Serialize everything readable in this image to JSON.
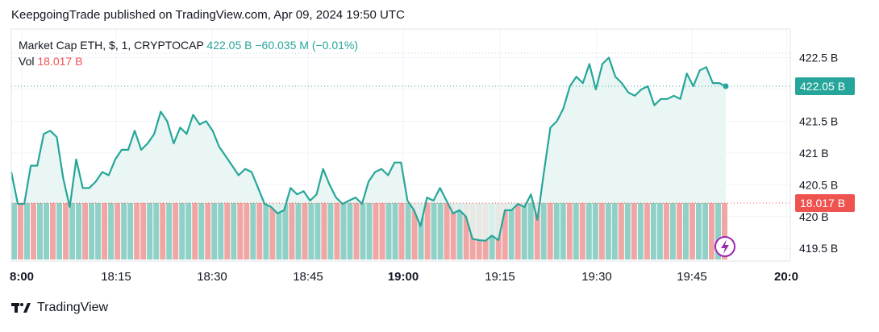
{
  "header": {
    "published_text": "KeepgoingTrade published on TradingView.com, Apr 09, 2024 19:50 UTC"
  },
  "legend": {
    "symbol": "Market Cap ETH, $, 1, CRYPTOCAP",
    "last_value": "422.05 B",
    "change": "−60.035 M (−0.01%)",
    "vol_label": "Vol",
    "vol_value": "18.017 B"
  },
  "badges": {
    "price": "422.05 B",
    "volume": "18.017 B"
  },
  "footer": {
    "brand": "TradingView"
  },
  "colors": {
    "line": "#26a69a",
    "area": "#e6f4f1",
    "vol_up": "#8fd1c6",
    "vol_down": "#f0a6a4",
    "price_badge": "#26a69a",
    "vol_badge": "#ef5350",
    "lightning": "#9c27b0"
  },
  "icons": {
    "lightning": "lightning-icon",
    "logo": "tradingview-logo-icon"
  },
  "chart_data": {
    "type": "area",
    "x_ticks": [
      "8:00",
      "18:15",
      "18:30",
      "18:45",
      "19:00",
      "19:15",
      "19:30",
      "19:45",
      "20:0"
    ],
    "y_ticks": [
      "422.5 B",
      "422 B",
      "421.5 B",
      "421 B",
      "420.5 B",
      "420 B",
      "419.5 B"
    ],
    "y_tick_values": [
      422.5,
      422.0,
      421.5,
      421.0,
      420.5,
      420.0,
      419.5
    ],
    "ylim": [
      419.3,
      422.95
    ],
    "series": [
      {
        "name": "Market Cap ETH",
        "values": [
          420.7,
          420.2,
          420.2,
          420.8,
          420.8,
          421.3,
          421.35,
          421.25,
          420.6,
          420.15,
          420.9,
          420.45,
          420.45,
          420.55,
          420.7,
          420.65,
          420.9,
          421.05,
          421.05,
          421.35,
          421.05,
          421.15,
          421.3,
          421.65,
          421.5,
          421.15,
          421.4,
          421.3,
          421.6,
          421.45,
          421.5,
          421.35,
          421.1,
          420.95,
          420.8,
          420.65,
          420.75,
          420.7,
          420.45,
          420.2,
          420.15,
          420.05,
          420.1,
          420.45,
          420.35,
          420.4,
          420.25,
          420.35,
          420.75,
          420.5,
          420.3,
          420.2,
          420.25,
          420.3,
          420.2,
          420.55,
          420.7,
          420.75,
          420.65,
          420.85,
          420.85,
          420.25,
          420.1,
          419.85,
          420.3,
          420.25,
          420.45,
          420.25,
          420.05,
          420.1,
          420.0,
          419.65,
          419.63,
          419.62,
          419.7,
          419.63,
          420.1,
          420.1,
          420.2,
          420.15,
          420.35,
          419.95,
          420.7,
          421.4,
          421.5,
          421.7,
          422.05,
          422.2,
          422.1,
          422.4,
          422.0,
          422.4,
          422.5,
          422.2,
          422.1,
          421.95,
          421.9,
          422.0,
          422.05,
          421.75,
          421.85,
          421.85,
          421.9,
          421.85,
          422.25,
          422.05,
          422.3,
          422.35,
          422.1,
          422.1,
          422.05
        ]
      }
    ],
    "volume_colors": [
      "up",
      "down",
      "up",
      "down",
      "up",
      "up",
      "down",
      "up",
      "down",
      "up",
      "up",
      "down",
      "up",
      "up",
      "down",
      "up",
      "down",
      "up",
      "up",
      "down",
      "down",
      "up",
      "up",
      "down",
      "up",
      "down",
      "up",
      "up",
      "down",
      "up",
      "down",
      "up",
      "up",
      "down",
      "up",
      "down",
      "down",
      "up",
      "down",
      "up",
      "down",
      "up",
      "up",
      "down",
      "up",
      "down",
      "up",
      "up",
      "down",
      "up",
      "down",
      "up",
      "up",
      "down",
      "up",
      "up",
      "down",
      "down",
      "up",
      "up",
      "down",
      "up",
      "down",
      "up",
      "down",
      "up",
      "up",
      "down",
      "down",
      "up",
      "down",
      "down",
      "down",
      "down",
      "up",
      "down",
      "down",
      "up",
      "down",
      "up",
      "up",
      "down",
      "up",
      "down",
      "up",
      "up",
      "down",
      "up",
      "down",
      "up",
      "up",
      "down",
      "up",
      "up",
      "down",
      "up",
      "down",
      "up",
      "down",
      "up",
      "up",
      "down",
      "up",
      "down",
      "up",
      "down",
      "up",
      "up",
      "down",
      "up",
      "down"
    ],
    "grid": true,
    "legend_position": "top-left"
  }
}
